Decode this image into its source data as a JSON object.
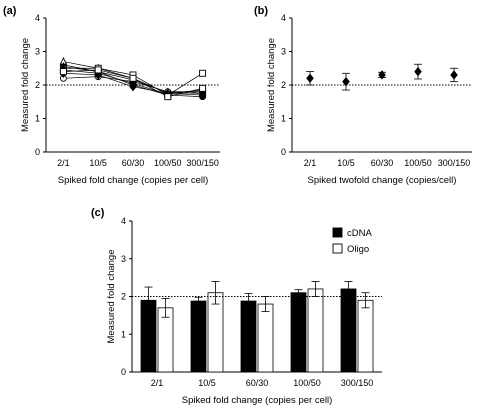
{
  "chart_data": [
    {
      "panel": "(a)",
      "type": "line",
      "categories": [
        "2/1",
        "10/5",
        "60/30",
        "100/50",
        "300/150"
      ],
      "xlabel": "Spiked fold change (copies per cell)",
      "ylabel": "Measured fold change",
      "ylim": [
        0,
        4
      ],
      "yticks": [
        "0",
        "1",
        "2",
        "3",
        "4"
      ],
      "reference_line": 2,
      "grid": false,
      "series": [
        {
          "marker": "circle-filled",
          "values": [
            2.6,
            2.4,
            2.0,
            1.7,
            1.65
          ]
        },
        {
          "marker": "circle-open",
          "values": [
            2.2,
            2.25,
            2.1,
            1.8,
            1.8
          ]
        },
        {
          "marker": "triangle-open",
          "values": [
            2.7,
            2.5,
            2.2,
            1.75,
            1.85
          ]
        },
        {
          "marker": "diamond-filled",
          "values": [
            2.35,
            2.3,
            1.95,
            1.75,
            1.7
          ]
        },
        {
          "marker": "square-open",
          "values": [
            2.5,
            2.5,
            2.3,
            1.7,
            2.35
          ]
        },
        {
          "marker": "square-filled",
          "values": [
            2.45,
            2.35,
            2.05,
            1.72,
            1.8
          ]
        },
        {
          "marker": "triangle-filled",
          "values": [
            2.55,
            2.4,
            2.15,
            1.78,
            1.75
          ]
        },
        {
          "marker": "square-open",
          "values": [
            2.4,
            2.45,
            2.2,
            1.65,
            1.9
          ]
        }
      ]
    },
    {
      "panel": "(b)",
      "type": "line",
      "categories": [
        "2/1",
        "10/5",
        "60/30",
        "100/50",
        "300/150"
      ],
      "xlabel": "Spiked twofold change (copies/cell)",
      "ylabel": "Measured fold change",
      "ylim": [
        0,
        4
      ],
      "yticks": [
        "0",
        "1",
        "2",
        "3",
        "4"
      ],
      "reference_line": 2,
      "grid": false,
      "series": [
        {
          "marker": "diamond-filled",
          "values": [
            2.2,
            2.1,
            2.3,
            2.4,
            2.3
          ],
          "errors": [
            0.2,
            0.25,
            0.08,
            0.22,
            0.2
          ]
        }
      ]
    },
    {
      "panel": "(c)",
      "type": "bar",
      "categories": [
        "2/1",
        "10/5",
        "60/30",
        "100/50",
        "300/150"
      ],
      "xlabel": "Spiked fold change (copies per cell)",
      "ylabel": "Measured fold change",
      "ylim": [
        0,
        4
      ],
      "yticks": [
        "0",
        "1",
        "2",
        "3",
        "4"
      ],
      "reference_line": 2,
      "grid": false,
      "legend_position": "top-right",
      "series": [
        {
          "name": "cDNA",
          "color": "#000000",
          "values": [
            1.9,
            1.88,
            1.88,
            2.1,
            2.2
          ],
          "errors": [
            0.35,
            0.1,
            0.2,
            0.08,
            0.2
          ]
        },
        {
          "name": "Oligo",
          "color": "#ffffff",
          "values": [
            1.7,
            2.1,
            1.8,
            2.2,
            1.9
          ],
          "errors": [
            0.25,
            0.3,
            0.2,
            0.2,
            0.2
          ]
        }
      ]
    }
  ],
  "panel_labels": [
    "(a)",
    "(b)",
    "(c)"
  ]
}
